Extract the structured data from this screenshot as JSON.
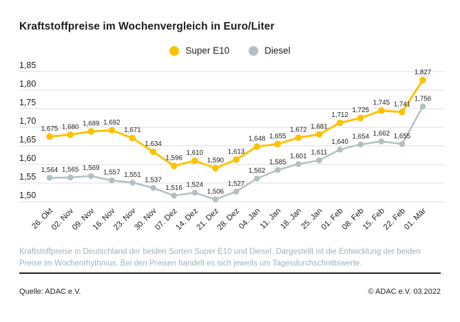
{
  "title": "Kraftstoffpreise im Wochenvergleich in Euro/Liter",
  "footnote": "Kraftstoffpreise in Deutschland der beiden Sorten Super E10 und Diesel. Dargestellt ist die Entwicklung der beiden Preise im Wochenrhythmus. Bei den Preisen handelt es sich jeweils um Tagesdurchschnittswerte.",
  "source": {
    "left": "Quelle: ADAC e.V.",
    "right": "© ADAC e.V. 03.2022"
  },
  "colors": {
    "super_e10": "#fcc200",
    "diesel": "#b3bfc1",
    "grid": "#dcdcdc",
    "text_dark": "#1d1d1b",
    "footnote_text": "#9fb3bc"
  },
  "chart_data": {
    "type": "line",
    "title": "Kraftstoffpreise im Wochenvergleich in Euro/Liter",
    "xlabel": "",
    "ylabel": "Euro/Liter",
    "ylim": [
      1.5,
      1.85
    ],
    "ytick_step": 0.05,
    "grid": true,
    "legend_position": "top-center",
    "value_labels": true,
    "decimal_comma": true,
    "categories": [
      "26. Okt",
      "02. Nov",
      "09. Nov",
      "16. Nov",
      "23. Nov",
      "30. Nov",
      "07. Dez",
      "14. Dez",
      "21. Dez",
      "28. Dez",
      "04. Jan",
      "11. Jan",
      "18. Jan",
      "25. Jan",
      "01. Feb",
      "08. Feb",
      "15. Feb",
      "22. Feb",
      "01. Mär"
    ],
    "series": [
      {
        "name": "Super E10",
        "color": "#fcc200",
        "values": [
          1.675,
          1.68,
          1.689,
          1.692,
          1.671,
          1.634,
          1.596,
          1.61,
          1.59,
          1.613,
          1.648,
          1.655,
          1.672,
          1.681,
          1.712,
          1.725,
          1.745,
          1.741,
          1.827
        ]
      },
      {
        "name": "Diesel",
        "color": "#b3bfc1",
        "values": [
          1.564,
          1.565,
          1.569,
          1.557,
          1.551,
          1.537,
          1.516,
          1.524,
          1.506,
          1.527,
          1.562,
          1.585,
          1.601,
          1.611,
          1.64,
          1.654,
          1.662,
          1.655,
          1.756
        ]
      }
    ]
  }
}
